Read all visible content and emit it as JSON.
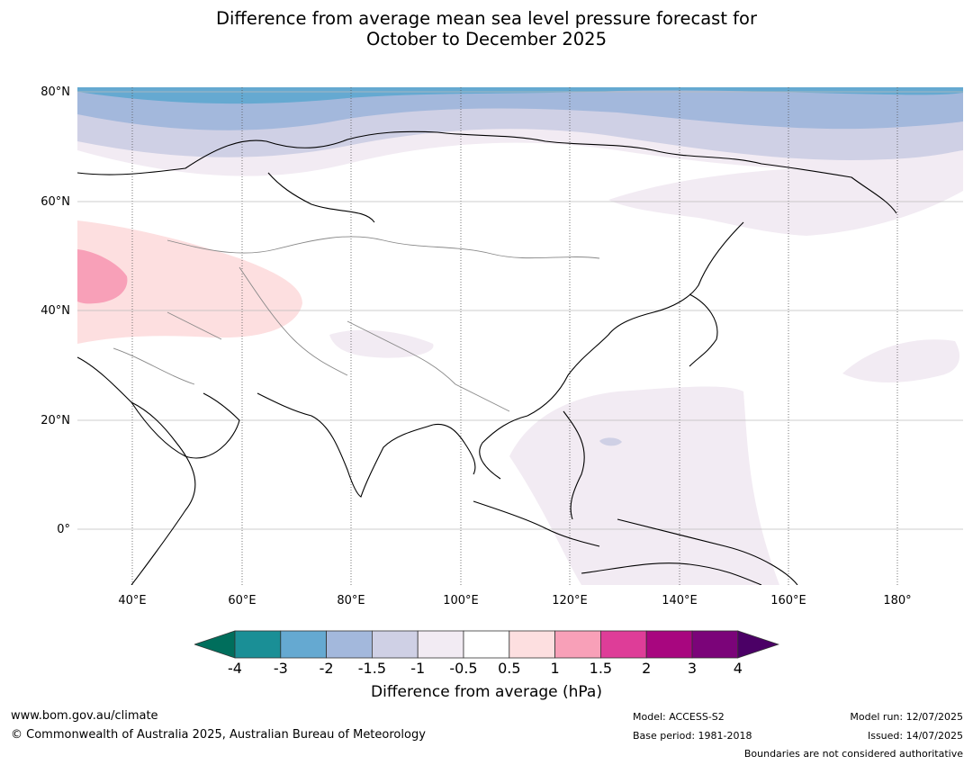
{
  "title_line1": "Difference from average mean sea level pressure forecast for",
  "title_line2": "October to December 2025",
  "axes": {
    "lat_labels": [
      "80°N",
      "60°N",
      "40°N",
      "20°N",
      "0°"
    ],
    "lon_labels": [
      "40°E",
      "60°E",
      "80°E",
      "100°E",
      "120°E",
      "140°E",
      "160°E",
      "180°"
    ]
  },
  "colorbar": {
    "ticks": [
      "-4",
      "-3",
      "-2",
      "-1.5",
      "-1",
      "-0.5",
      "0.5",
      "1",
      "1.5",
      "2",
      "3",
      "4"
    ],
    "colors": [
      "#1a8f96",
      "#65a9d1",
      "#a3b8dc",
      "#cfd0e5",
      "#f2ebf3",
      "#ffffff",
      "#fddfe0",
      "#f8a0b8",
      "#de3d98",
      "#a8067f",
      "#7b0479"
    ],
    "under_color": "#006e5c",
    "over_color": "#4b0066",
    "label": "Difference from average (hPa)"
  },
  "footer": {
    "url": "www.bom.gov.au/climate",
    "copyright": "© Commonwealth of Australia 2025, Australian Bureau of Meteorology",
    "model": "Model: ACCESS-S2",
    "base_period": "Base period: 1981-2018",
    "model_run": "Model run: 12/07/2025",
    "issued": "Issued: 14/07/2025",
    "boundaries_note": "Boundaries are not considered authoritative"
  }
}
